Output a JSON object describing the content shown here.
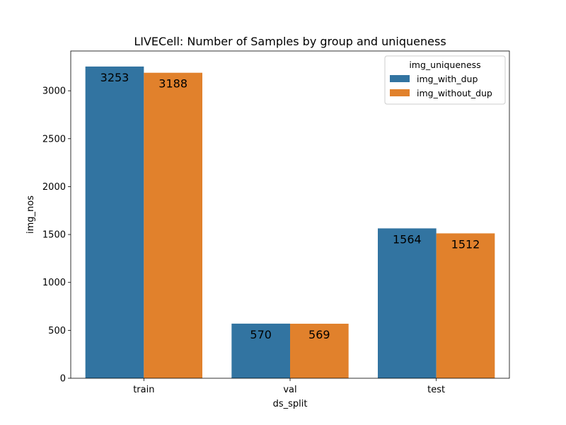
{
  "chart_data": {
    "type": "bar",
    "title": "LIVECell: Number of Samples by group and uniqueness",
    "xlabel": "ds_split",
    "ylabel": "img_nos",
    "categories": [
      "train",
      "val",
      "test"
    ],
    "series": [
      {
        "name": "img_with_dup",
        "values": [
          3253,
          570,
          1564
        ],
        "color": "#3274a1"
      },
      {
        "name": "img_without_dup",
        "values": [
          3188,
          569,
          1512
        ],
        "color": "#e1812c"
      }
    ],
    "ylim": [
      0,
      3415
    ],
    "yticks": [
      0,
      500,
      1000,
      1500,
      2000,
      2500,
      3000
    ],
    "legend": {
      "title": "img_uniqueness",
      "position": "top-right"
    },
    "grid": false
  }
}
